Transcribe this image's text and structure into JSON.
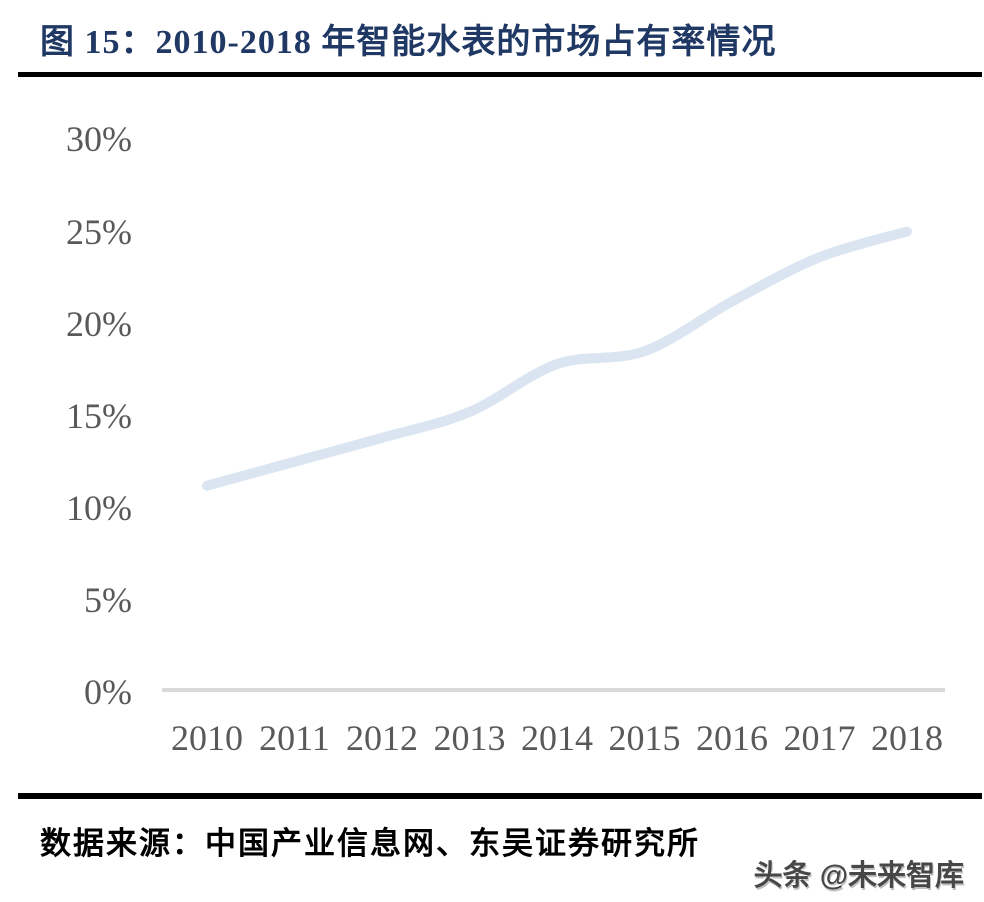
{
  "figure": {
    "title": "图 15：2010-2018 年智能水表的市场占有率情况",
    "source": "数据来源：中国产业信息网、东吴证券研究所",
    "watermark": "头条 @未来智库"
  },
  "colors": {
    "title": "#1f3864",
    "tick_label": "#595959",
    "trend_line": "#dbe5f1",
    "axis_line": "#d9d9d9",
    "divider": "#000000",
    "source_text": "#000000"
  },
  "chart_data": {
    "type": "line",
    "title": "2010-2018 年智能水表的市场占有率情况",
    "categories": [
      "2010",
      "2011",
      "2012",
      "2013",
      "2014",
      "2015",
      "2016",
      "2017",
      "2018"
    ],
    "values": [
      11.2,
      12.5,
      13.8,
      15.2,
      17.8,
      18.5,
      21.2,
      23.6,
      25.0
    ],
    "unit": "%",
    "xlabel": "",
    "ylabel": "",
    "ylim": [
      0,
      30
    ],
    "y_tick_interval": 5,
    "y_tick_labels": [
      "0%",
      "5%",
      "10%",
      "15%",
      "20%",
      "25%",
      "30%"
    ],
    "grid": false,
    "legend": "none",
    "line_style": "smooth"
  }
}
